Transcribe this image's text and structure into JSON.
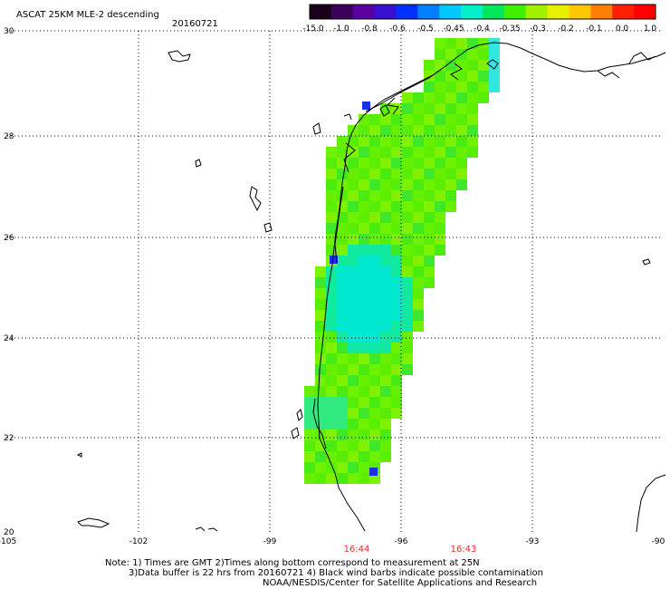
{
  "title": "ASCAT 25KM MLE-2 descending",
  "date": "20160721",
  "colorbar": {
    "labels": [
      "-15.0",
      "-1.0",
      "-0.8",
      "-0.6",
      "-0.5",
      "-0.45",
      "-0.4",
      "-0.35",
      "-0.3",
      "-0.2",
      "-0.1",
      "0.0",
      "1.0"
    ],
    "colors": [
      "#1a001a",
      "#3a005a",
      "#5a00a0",
      "#3a10d0",
      "#0030ff",
      "#0080ff",
      "#00c8ff",
      "#00f0c8",
      "#00e85a",
      "#40f000",
      "#a0f000",
      "#e8f000",
      "#ffc800",
      "#ff8000",
      "#ff2000",
      "#ff0000"
    ]
  },
  "grid": {
    "lon_labels": [
      "-105",
      "-102",
      "-99",
      "-96",
      "-93",
      "-90"
    ],
    "lat_labels": [
      "30",
      "28",
      "26",
      "24",
      "22",
      "20"
    ]
  },
  "times": [
    "16:44",
    "16:43"
  ],
  "notes": [
    "Note: 1) Times are GMT 2)Times along bottom correspond to measurement at 25N",
    "3)Data buffer is 22 hrs from 20160721 4) Black wind barbs indicate possible contamination",
    "NOAA/NESDIS/Center for Satellite Applications and Research"
  ]
}
